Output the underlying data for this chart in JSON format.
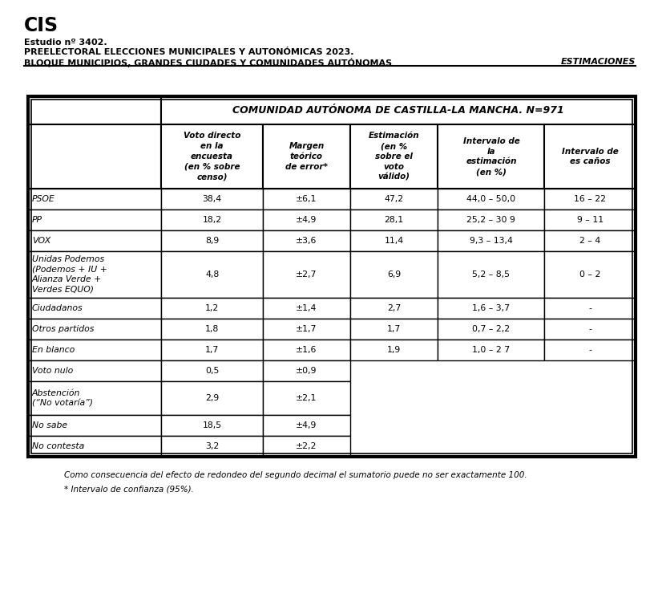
{
  "title": "CIS",
  "subtitle_line1": "Estudio nº 3402.",
  "subtitle_line2": "PREELECTORAL ELECCIONES MUNICIPALES Y AUTONÓMICAS 2023.",
  "subtitle_line3": "BLOQUE MUNICIPIOS, GRANDES CIUDADES Y COMUNIDADES AUTÓNOMAS",
  "subtitle_right": "ESTIMACIONES",
  "table_title": "COMUNIDAD AUTÓNOMA DE CASTILLA-LA MANCHA. N=971",
  "col_header0": "",
  "col_header1": "Voto directo\nen la\nencuesta\n(en % sobre\ncenso)",
  "col_header2": "Margen\nteórico\nde error*",
  "col_header3": "Estimación\n(en %\nsobre el\nvoto\nválido)",
  "col_header4": "Intervalo de\nla\nestimación\n(en %)",
  "col_header5": "Intervalo de\nes caños",
  "rows": [
    [
      "PSOE",
      "38,4",
      "±6,1",
      "47,2",
      "44,0 – 50,0",
      "16 – 22"
    ],
    [
      "PP",
      "18,2",
      "±4,9",
      "28,1",
      "25,2 – 30 9",
      "9 – 11"
    ],
    [
      "VOX",
      "8,9",
      "±3,6",
      "11,4",
      "9,3 – 13,4",
      "2 – 4"
    ],
    [
      "Unidas Podemos\n(Podemos + IU +\nAlianza Verde +\nVerdes EQUO)",
      "4,8",
      "±2,7",
      "6,9",
      "5,2 – 8,5",
      "0 – 2"
    ],
    [
      "Ciudadanos",
      "1,2",
      "±1,4",
      "2,7",
      "1,6 – 3,7",
      "-"
    ],
    [
      "Otros partidos",
      "1,8",
      "±1,7",
      "1,7",
      "0,7 – 2,2",
      "-"
    ],
    [
      "En blanco",
      "1,7",
      "±1,6",
      "1,9",
      "1,0 – 2 7",
      "-"
    ],
    [
      "Voto nulo",
      "0,5",
      "±0,9",
      "",
      "",
      ""
    ],
    [
      "Abstención\n(“No votaría”)",
      "2,9",
      "±2,1",
      "",
      "",
      ""
    ],
    [
      "No sabe",
      "18,5",
      "±4,9",
      "",
      "",
      ""
    ],
    [
      "No contesta",
      "3,2",
      "±2,2",
      "",
      "",
      ""
    ]
  ],
  "footnote1": "Como consecuencia del efecto de redondeo del segundo decimal el sumatorio puede no ser exactamente 100.",
  "footnote2": "* Intervalo de confianza (95%).",
  "bg_color": "#ffffff",
  "text_color": "#000000",
  "fig_width": 8.21,
  "fig_height": 7.55,
  "fig_dpi": 100
}
